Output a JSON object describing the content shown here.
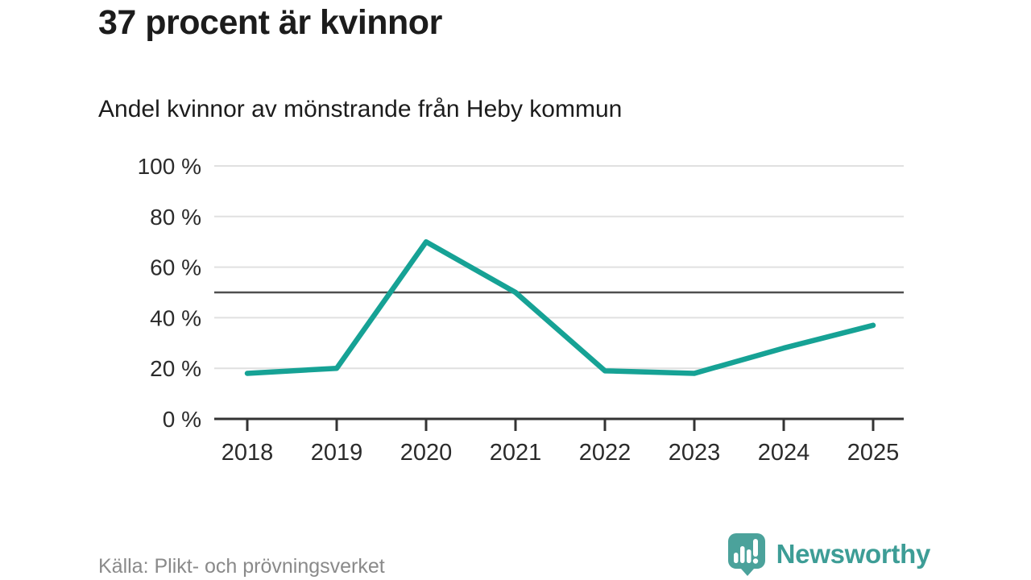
{
  "header": {
    "title": "37 procent är kvinnor",
    "subtitle": "Andel kvinnor av mönstrande från Heby kommun"
  },
  "footer": {
    "source": "Källa: Plikt- och prövningsverket",
    "brand": "Newsworthy",
    "brand_color": "#3d9d96",
    "logo_color": "#4ba29b"
  },
  "chart_data": {
    "type": "line",
    "title": "37 procent är kvinnor",
    "subtitle": "Andel kvinnor av mönstrande från Heby kommun",
    "x": [
      2018,
      2019,
      2020,
      2021,
      2022,
      2023,
      2024,
      2025
    ],
    "series": [
      {
        "name": "Andel kvinnor av mönstrande",
        "values": [
          18,
          20,
          70,
          50,
          19,
          18,
          28,
          37
        ]
      }
    ],
    "xlabel": "",
    "ylabel": "",
    "ylim": [
      0,
      100
    ],
    "yticks": [
      0,
      20,
      40,
      60,
      80,
      100
    ],
    "ytick_format": "{v} %",
    "reference_line": 50,
    "grid": true,
    "legend": false,
    "colors": {
      "line": "#16a295",
      "grid": "#e0e0e0",
      "reference": "#4f4f4f",
      "axis": "#333333",
      "tick_text": "#2b2b2b",
      "muted_text": "#8a8a8a"
    }
  }
}
